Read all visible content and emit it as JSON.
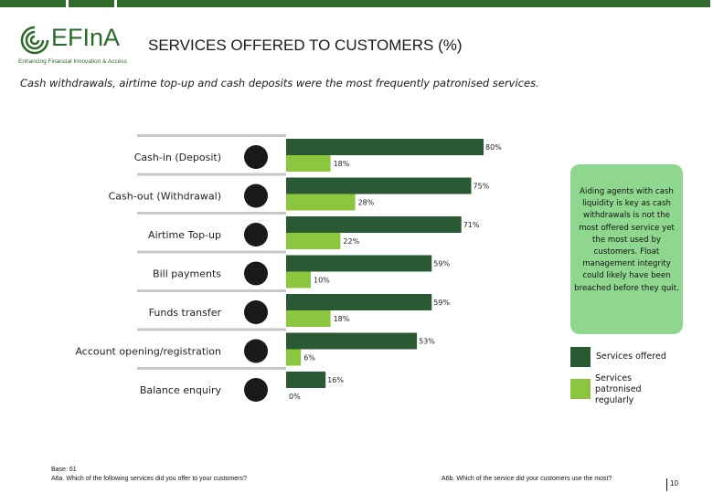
{
  "brand": {
    "name": "EFInA",
    "tagline": "Enhancing Financial Innovation & Access"
  },
  "page": {
    "title": "SERVICES OFFERED TO CUSTOMERS (%)",
    "subtitle": "Cash withdrawals, airtime top-up and cash deposits were the most frequently patronised services.",
    "number": "10"
  },
  "callout": {
    "text": "Aiding agents with cash liquidity is key as cash withdrawals is not the most offered service yet the most used by customers. Float management integrity could likely have been breached before they quit."
  },
  "legend": {
    "offered": "Services offered",
    "patronised": "Services patronised regularly"
  },
  "footnotes": {
    "base": "Base: 61",
    "q_a": "A6a. Which of the following services did you offer to your customers?",
    "q_b": "A6b. Which of the service did your customers use the most?"
  },
  "colors": {
    "offered": "#2a5a33",
    "patronised": "#8cc63f",
    "callout": "#8fd68f",
    "brand": "#2a6b2a"
  },
  "chart_data": {
    "type": "bar",
    "orientation": "horizontal",
    "categories": [
      "Cash-in (Deposit)",
      "Cash-out (Withdrawal)",
      "Airtime Top-up",
      "Bill payments",
      "Funds transfer",
      "Account opening/registration",
      "Balance enquiry"
    ],
    "icons": [
      "piggy-bank-icon",
      "money-bag-hand-icon",
      "mobile-phone-icon",
      "bill-payment-icon",
      "funds-transfer-icon",
      "registration-form-icon",
      "phone-handset-icon"
    ],
    "series": [
      {
        "name": "Services offered",
        "values": [
          80,
          75,
          71,
          59,
          59,
          53,
          16
        ]
      },
      {
        "name": "Services patronised regularly",
        "values": [
          18,
          28,
          22,
          10,
          18,
          6,
          0
        ]
      }
    ],
    "value_suffix": "%",
    "xlim": [
      0,
      100
    ],
    "grid": false,
    "legend_position": "right"
  }
}
